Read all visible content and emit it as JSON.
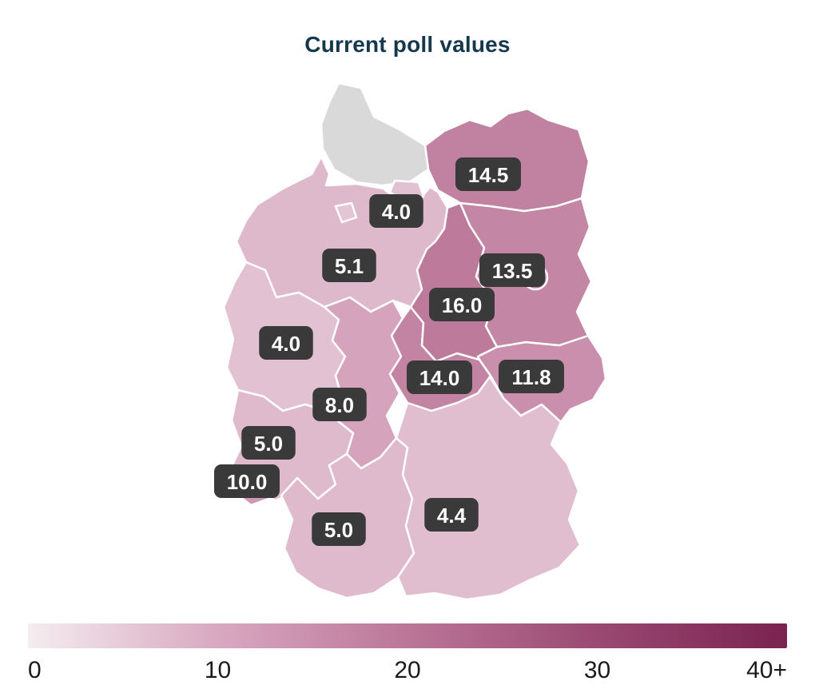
{
  "colors": {
    "title": "#16384c",
    "chip_bg": "#3a3a3a",
    "chip_text": "#ffffff",
    "state_border": "#ffffff",
    "background": "#ffffff"
  },
  "chart_data": {
    "type": "choropleth",
    "title": "Current poll values",
    "region": "Germany federal states",
    "color_scale": {
      "min": 0,
      "max": 40,
      "ticks": [
        "0",
        "10",
        "20",
        "30",
        "40+"
      ],
      "no_data_color": "#d9d9d9",
      "stops": [
        {
          "t": 0,
          "color": "#f4edf0"
        },
        {
          "t": 10,
          "color": "#d8a8c0"
        },
        {
          "t": 20,
          "color": "#bb7698"
        },
        {
          "t": 30,
          "color": "#9a4a72"
        },
        {
          "t": 40,
          "color": "#7a2250"
        }
      ]
    },
    "states": [
      {
        "name": "Schleswig-Holstein",
        "value": null,
        "label": null
      },
      {
        "name": "Mecklenburg-Vorpommern",
        "value": 14.5,
        "label": "14.5"
      },
      {
        "name": "Hamburg",
        "value": 4.0,
        "label": "4.0"
      },
      {
        "name": "Bremen",
        "value": null,
        "label": null,
        "fill": "#e3c5d3"
      },
      {
        "name": "Niedersachsen",
        "value": 5.1,
        "label": "5.1"
      },
      {
        "name": "Brandenburg",
        "value": 13.5,
        "label": "13.5"
      },
      {
        "name": "Berlin",
        "value": null,
        "label": null,
        "fill": "#bc7da0"
      },
      {
        "name": "Sachsen-Anhalt",
        "value": 16.0,
        "label": "16.0"
      },
      {
        "name": "Nordrhein-Westfalen",
        "value": 4.0,
        "label": "4.0"
      },
      {
        "name": "Thüringen",
        "value": 14.0,
        "label": "14.0"
      },
      {
        "name": "Sachsen",
        "value": 11.8,
        "label": "11.8"
      },
      {
        "name": "Hessen",
        "value": 8.0,
        "label": "8.0"
      },
      {
        "name": "Rheinland-Pfalz",
        "value": 5.0,
        "label": "5.0"
      },
      {
        "name": "Saarland",
        "value": 10.0,
        "label": "10.0"
      },
      {
        "name": "Baden-Württemberg",
        "value": 5.0,
        "label": "5.0"
      },
      {
        "name": "Bayern",
        "value": 4.4,
        "label": "4.4"
      }
    ]
  }
}
